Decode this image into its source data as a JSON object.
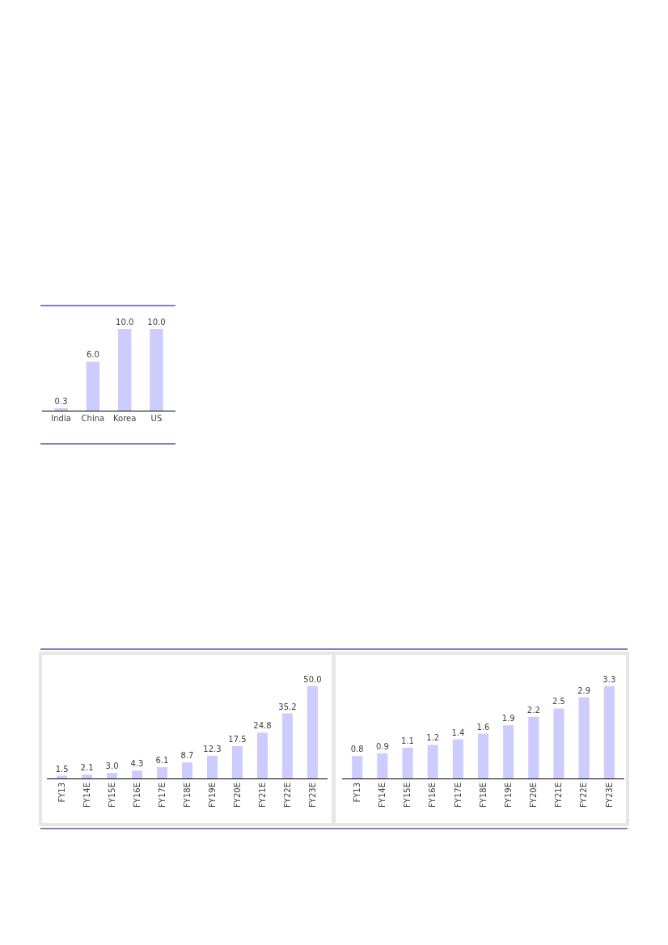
{
  "chart_data": [
    {
      "type": "bar",
      "categories": [
        "India",
        "China",
        "Korea",
        "US"
      ],
      "values": [
        0.3,
        6.0,
        10.0,
        10.0
      ],
      "value_labels": [
        "0.3",
        "6.0",
        "10.0",
        "10.0"
      ],
      "color": "#ccccff"
    },
    {
      "type": "bar",
      "categories": [
        "FY13",
        "FY14E",
        "FY15E",
        "FY16E",
        "FY17E",
        "FY18E",
        "FY19E",
        "FY20E",
        "FY21E",
        "FY22E",
        "FY23E"
      ],
      "values": [
        1.5,
        2.1,
        3.0,
        4.3,
        6.1,
        8.7,
        12.3,
        17.5,
        24.8,
        35.2,
        50.0
      ],
      "value_labels": [
        "1.5",
        "2.1",
        "3.0",
        "4.3",
        "6.1",
        "8.7",
        "12.3",
        "17.5",
        "24.8",
        "35.2",
        "50.0"
      ],
      "color": "#ccccff"
    },
    {
      "type": "bar",
      "categories": [
        "FY13",
        "FY14E",
        "FY15E",
        "FY16E",
        "FY17E",
        "FY18E",
        "FY19E",
        "FY20E",
        "FY21E",
        "FY22E",
        "FY23E"
      ],
      "values": [
        0.8,
        0.9,
        1.1,
        1.2,
        1.4,
        1.6,
        1.9,
        2.2,
        2.5,
        2.9,
        3.3
      ],
      "value_labels": [
        "0.8",
        "0.9",
        "1.1",
        "1.2",
        "1.4",
        "1.6",
        "1.9",
        "2.2",
        "2.5",
        "2.9",
        "3.3"
      ],
      "color": "#ccccff"
    }
  ]
}
